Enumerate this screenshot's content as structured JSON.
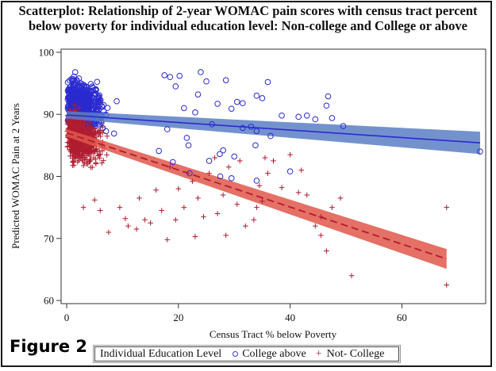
{
  "figure_label": "Figure 2",
  "colors": {
    "college": "#2a2ad0",
    "college_band": "#5b7fc4",
    "not_college": "#b01c30",
    "not_college_band": "#e0574a"
  },
  "legend": {
    "title": "Individual Education Level",
    "items": [
      {
        "label": "College above",
        "symbol": "circle-icon"
      },
      {
        "label": "Not- College",
        "symbol": "plus-icon"
      }
    ]
  },
  "chart_data": {
    "type": "scatter",
    "title": "Scatterplot: Relationship of 2-year WOMAC pain scores with census tract percent",
    "subtitle": "below poverty for individual education level: Non-college and College or above",
    "xlabel": "Census Tract % below Poverty",
    "ylabel": "Predicted WOMAC Pain at 2 Years",
    "xlim": [
      -1,
      75
    ],
    "ylim": [
      59.5,
      100.5
    ],
    "xticks": [
      0,
      20,
      40,
      60
    ],
    "yticks": [
      60,
      70,
      80,
      90,
      100
    ],
    "grid": false,
    "legend_position": "bottom",
    "series": [
      {
        "name": "College above",
        "marker": "circle",
        "fit": {
          "type": "linear",
          "line": "solid",
          "x_range": [
            0,
            74
          ],
          "y_start": 89.9,
          "y_end": 85.4,
          "ci_halfwidth_start": 0.6,
          "ci_halfwidth_end": 1.8
        },
        "dense_cluster": {
          "x_range": [
            0,
            15
          ],
          "y_range": [
            76,
            99
          ],
          "note": "hundreds of overlapping points"
        },
        "points": [
          [
            17.5,
            96.3
          ],
          [
            18.5,
            96.0
          ],
          [
            19.5,
            94.5
          ],
          [
            20.2,
            96.2
          ],
          [
            24,
            96.8
          ],
          [
            25,
            95.3
          ],
          [
            28.5,
            95.5
          ],
          [
            23.5,
            93.2
          ],
          [
            30.5,
            92.0
          ],
          [
            34,
            93.0
          ],
          [
            35,
            92.6
          ],
          [
            31.5,
            91.8
          ],
          [
            36,
            95.2
          ],
          [
            27,
            91.7
          ],
          [
            29.5,
            90.9
          ],
          [
            21,
            91.0
          ],
          [
            23,
            90.3
          ],
          [
            38.5,
            89.8
          ],
          [
            41.5,
            89.6
          ],
          [
            43,
            89.8
          ],
          [
            46.5,
            91.4
          ],
          [
            46.8,
            92.9
          ],
          [
            47.5,
            89.4
          ],
          [
            49.5,
            88.1
          ],
          [
            44.5,
            89.2
          ],
          [
            33,
            88.0
          ],
          [
            34,
            87.3
          ],
          [
            31.5,
            87.8
          ],
          [
            36.5,
            86.5
          ],
          [
            21.5,
            86.2
          ],
          [
            21.8,
            85.0
          ],
          [
            28,
            84.2
          ],
          [
            27.4,
            83.6
          ],
          [
            29.5,
            79.7
          ],
          [
            34,
            79.3
          ],
          [
            27.5,
            80.0
          ],
          [
            40,
            80.8
          ],
          [
            33.8,
            85.0
          ],
          [
            74,
            84.0
          ],
          [
            22,
            80.5
          ],
          [
            25.5,
            82.5
          ],
          [
            30,
            83.2
          ],
          [
            26,
            88.4
          ],
          [
            18,
            87.6
          ],
          [
            16.5,
            84.1
          ],
          [
            19,
            82.3
          ]
        ]
      },
      {
        "name": "Not- College",
        "marker": "plus",
        "fit": {
          "type": "linear",
          "line": "dashed",
          "x_range": [
            0,
            68
          ],
          "y_start": 87.0,
          "y_end": 66.7,
          "ci_halfwidth_start": 0.6,
          "ci_halfwidth_end": 1.6
        },
        "dense_cluster": {
          "x_range": [
            0,
            15
          ],
          "y_range": [
            74,
            97
          ],
          "note": "hundreds of overlapping points"
        },
        "points": [
          [
            68,
            75.0
          ],
          [
            68,
            62.5
          ],
          [
            51,
            64.0
          ],
          [
            45.5,
            70.5
          ],
          [
            46.5,
            68.0
          ],
          [
            47.5,
            75.0
          ],
          [
            45.5,
            73.5
          ],
          [
            49,
            76.5
          ],
          [
            44.5,
            72.0
          ],
          [
            43,
            77.0
          ],
          [
            41.5,
            77.4
          ],
          [
            38.5,
            78.2
          ],
          [
            34.5,
            78.5
          ],
          [
            33.5,
            73.0
          ],
          [
            35,
            76.0
          ],
          [
            34,
            75.0
          ],
          [
            32,
            72.0
          ],
          [
            30.5,
            75.5
          ],
          [
            25.5,
            80.5
          ],
          [
            27,
            74.0
          ],
          [
            28,
            77.0
          ],
          [
            23,
            70.3
          ],
          [
            28.5,
            70.5
          ],
          [
            18,
            69.8
          ],
          [
            23.5,
            76.5
          ],
          [
            21,
            75.0
          ],
          [
            19.5,
            73.0
          ],
          [
            17,
            74.5
          ],
          [
            15,
            72.5
          ],
          [
            12.5,
            71.5
          ],
          [
            14,
            73.0
          ],
          [
            11,
            72.0
          ],
          [
            7.5,
            71.0
          ],
          [
            20,
            78.0
          ],
          [
            22.5,
            79.2
          ],
          [
            16,
            77.8
          ],
          [
            13,
            76.5
          ],
          [
            9.5,
            75.0
          ],
          [
            6,
            74.5
          ],
          [
            3,
            75.0
          ],
          [
            35.5,
            83.0
          ],
          [
            37,
            82.5
          ],
          [
            40,
            83.5
          ],
          [
            31,
            82.5
          ],
          [
            26.5,
            83.0
          ],
          [
            29,
            81.5
          ],
          [
            10.5,
            73.2
          ],
          [
            5,
            76.2
          ],
          [
            24.5,
            73.5
          ],
          [
            18.5,
            81.5
          ],
          [
            42,
            81.0
          ],
          [
            36,
            80.5
          ]
        ]
      }
    ]
  }
}
